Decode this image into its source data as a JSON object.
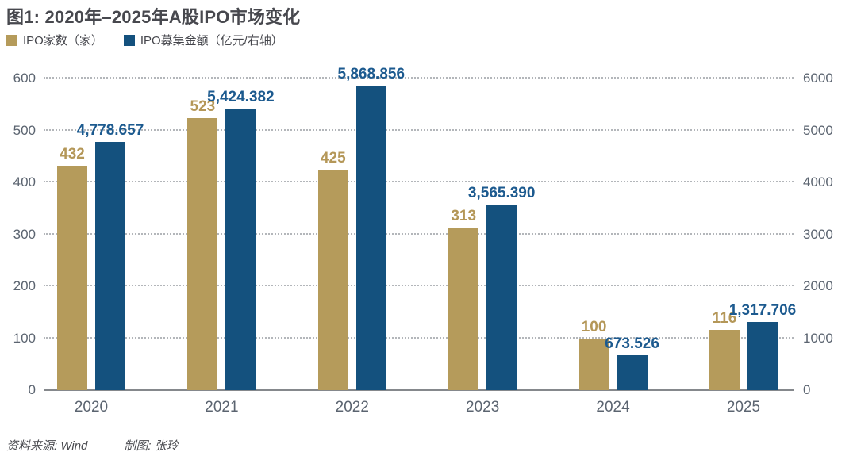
{
  "title": "图1: 2020年–2025年A股IPO市场变化",
  "legend": [
    {
      "label": "IPO家数（家）",
      "color": "#b59b5b"
    },
    {
      "label": "IPO募集金额（亿元/右轴）",
      "color": "#14517e"
    }
  ],
  "footer": {
    "source": "资料来源: Wind",
    "author": "制图: 张玲"
  },
  "colors": {
    "gold_bar": "#b59b5b",
    "blue_bar": "#14517e",
    "gold_label": "#b49758",
    "blue_label": "#1c5a8f",
    "axis_text": "#5b6470",
    "gridline": "#b3b6ba",
    "baseline": "#85888c",
    "title_text": "#47484e"
  },
  "chart_data": {
    "type": "bar",
    "title": "图1: 2020年–2025年A股IPO市场变化",
    "categories": [
      "2020",
      "2021",
      "2022",
      "2023",
      "2024",
      "2025"
    ],
    "series": [
      {
        "name": "IPO家数（家）",
        "axis": "left",
        "color": "#b59b5b",
        "values": [
          432,
          523,
          425,
          313,
          100,
          116
        ],
        "labels": [
          "432",
          "523",
          "425",
          "313",
          "100",
          "116"
        ]
      },
      {
        "name": "IPO募集金额（亿元/右轴）",
        "axis": "right",
        "color": "#14517e",
        "values": [
          4778.657,
          5424.382,
          5868.856,
          3565.39,
          673.526,
          1317.706
        ],
        "labels": [
          "4,778.657",
          "5,424.382",
          "5,868.856",
          "3,565.390",
          "673.526",
          "1,317.706"
        ]
      }
    ],
    "left_axis": {
      "min": 0,
      "max": 600,
      "ticks": [
        0,
        100,
        200,
        300,
        400,
        500,
        600
      ]
    },
    "right_axis": {
      "min": 0,
      "max": 6000,
      "ticks": [
        0,
        1000,
        2000,
        3000,
        4000,
        5000,
        6000
      ]
    },
    "grid": "horizontal dotted",
    "legend_position": "top-left",
    "source": "资料来源: Wind",
    "credit": "制图: 张玲"
  }
}
